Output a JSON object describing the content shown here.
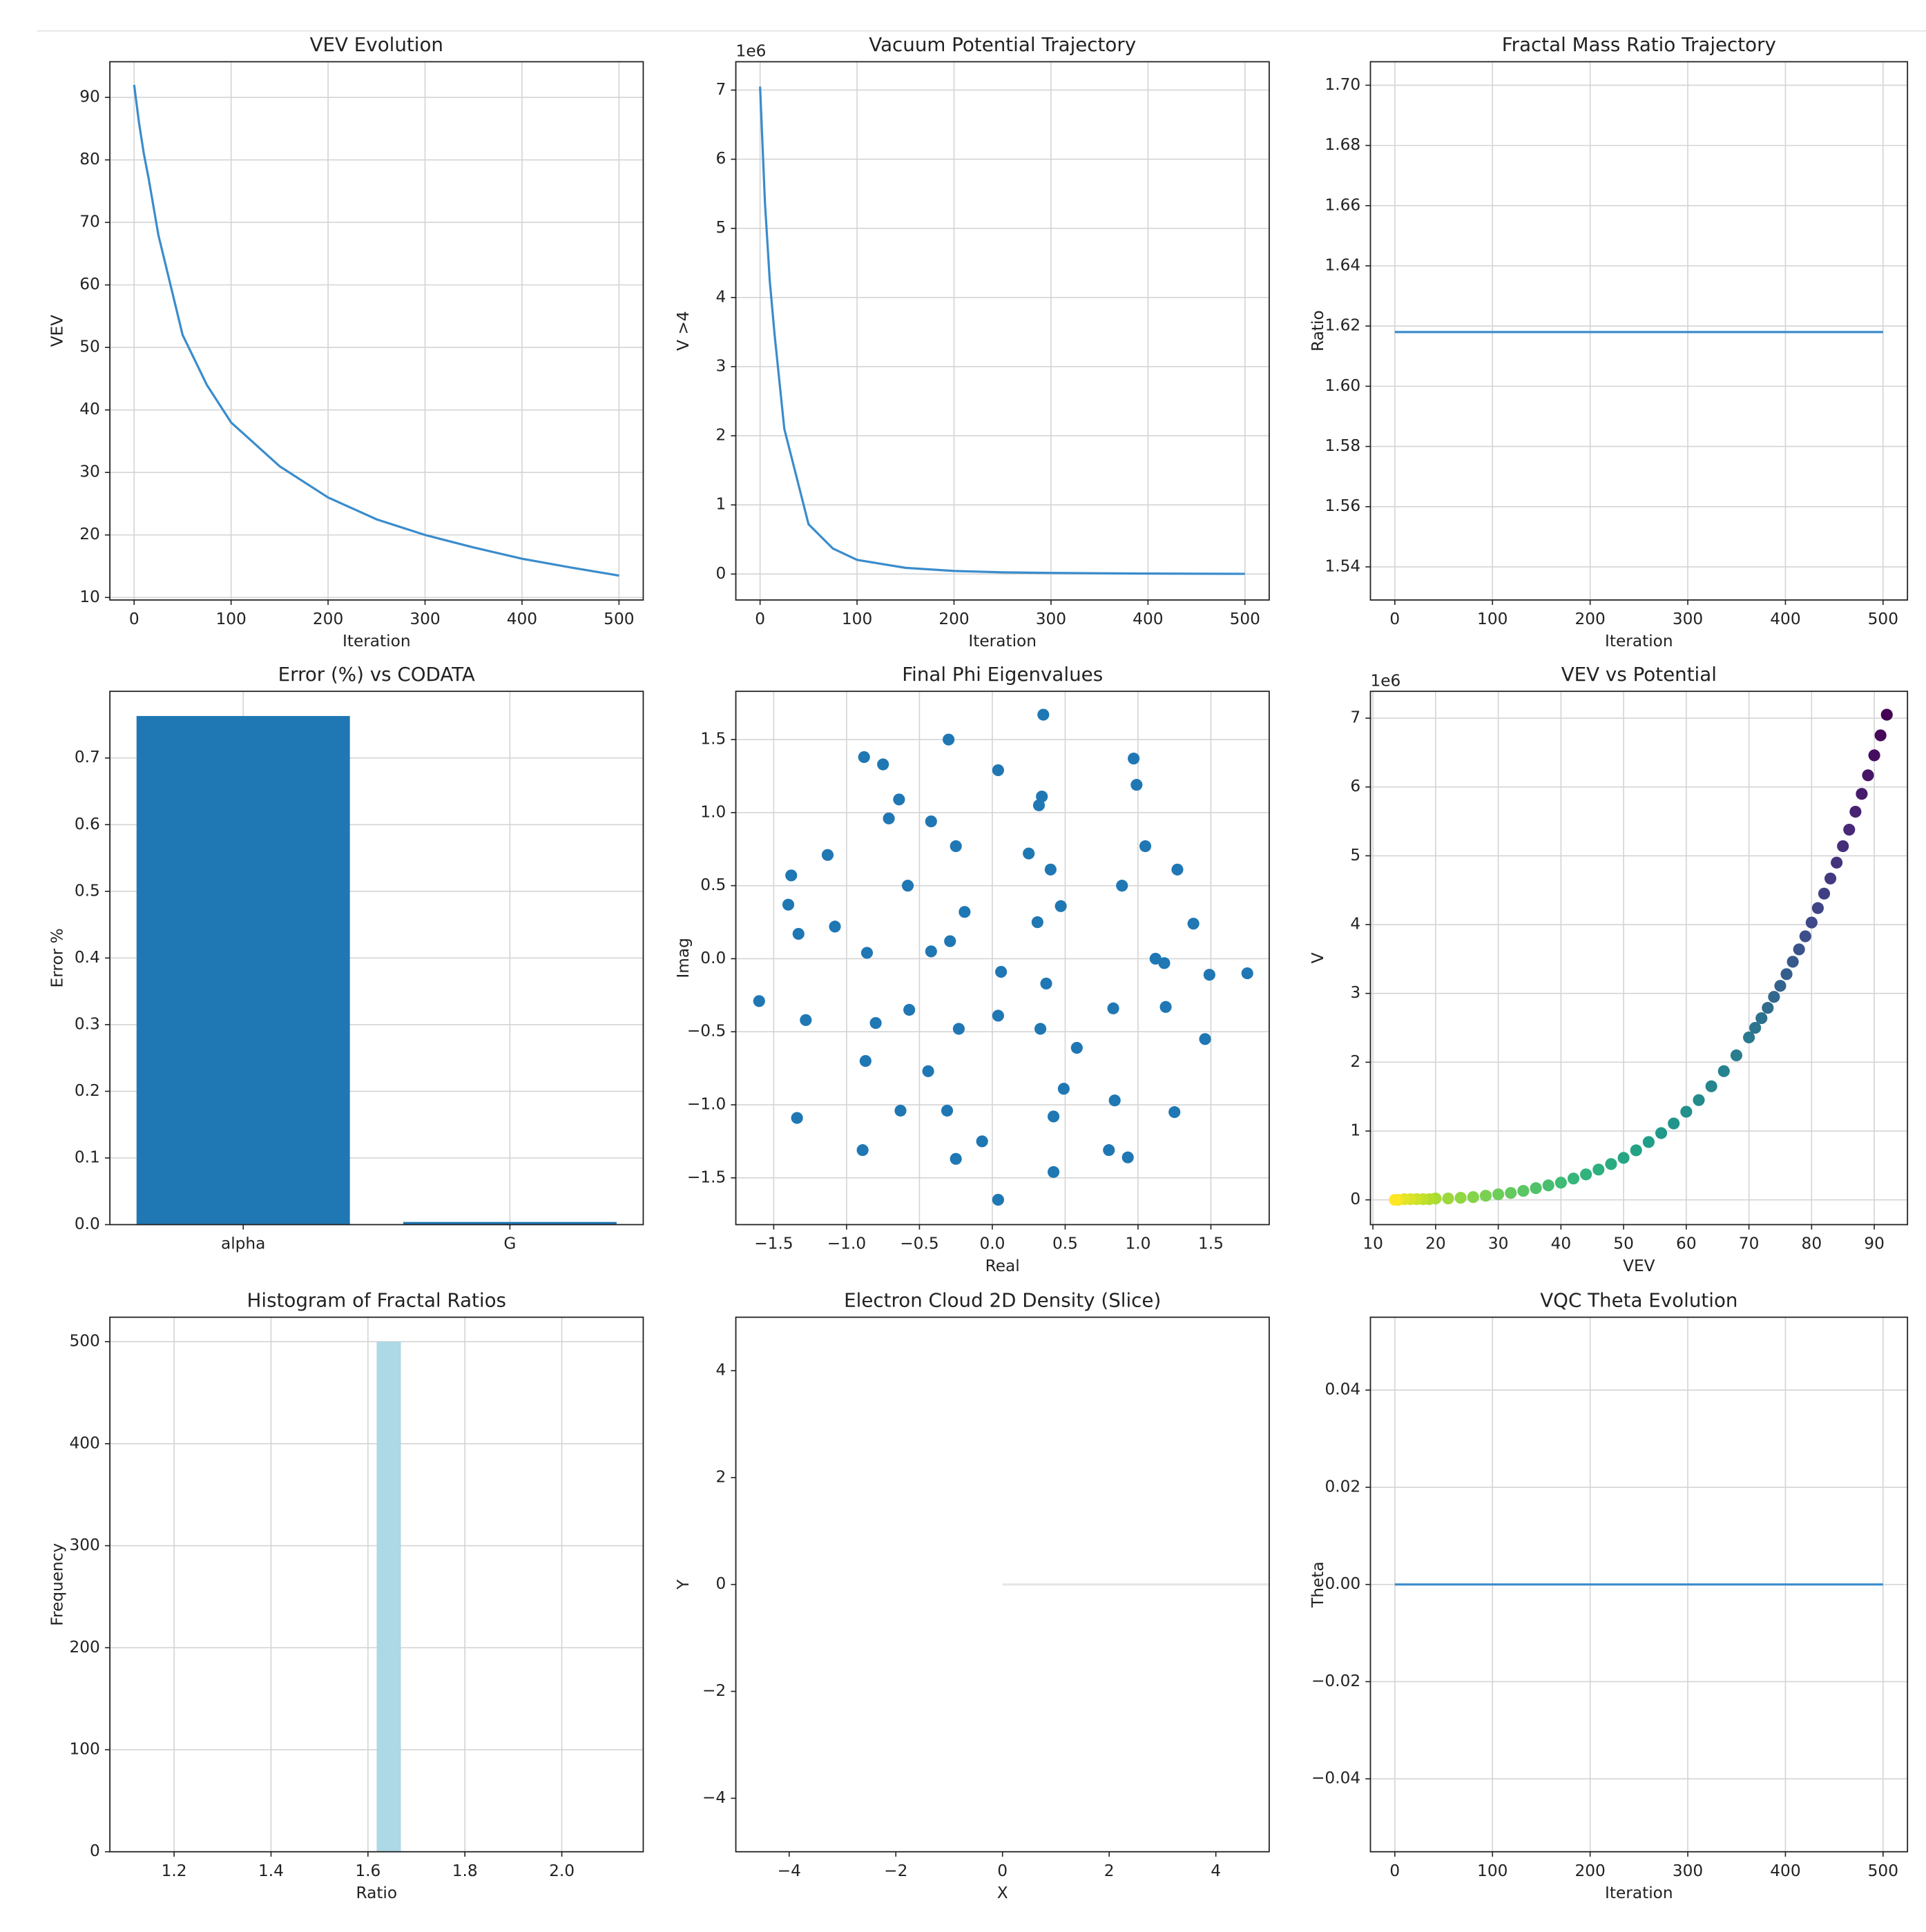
{
  "chart_data": [
    {
      "type": "line",
      "title": "VEV Evolution",
      "xlabel": "Iteration",
      "ylabel": "VEV",
      "grid": true,
      "color": "#3a8ccc",
      "x": [
        0,
        5,
        10,
        15,
        25,
        50,
        75,
        100,
        150,
        200,
        250,
        300,
        350,
        400,
        450,
        500
      ],
      "values": [
        92,
        86,
        81,
        77,
        68,
        52,
        44,
        38,
        31,
        26,
        22.5,
        20,
        18,
        16.2,
        14.8,
        13.5
      ],
      "xlim": [
        -25,
        525
      ],
      "xticks": [
        0,
        100,
        200,
        300,
        400,
        500
      ],
      "ylim": [
        9.6,
        95.7
      ],
      "yticks": [
        10,
        20,
        30,
        40,
        50,
        60,
        70,
        80,
        90
      ]
    },
    {
      "type": "line",
      "title": "Vacuum Potential Trajectory",
      "xlabel": "Iteration",
      "ylabel": "V >4",
      "y_offset_text": "1e6",
      "grid": true,
      "color": "#3a8ccc",
      "x": [
        0,
        5,
        10,
        15,
        25,
        50,
        75,
        100,
        150,
        200,
        250,
        300,
        350,
        400,
        450,
        500
      ],
      "values": [
        7.05,
        5.38,
        4.24,
        3.46,
        2.1,
        0.72,
        0.37,
        0.205,
        0.09,
        0.045,
        0.025,
        0.016,
        0.011,
        0.007,
        0.005,
        0.003
      ],
      "xlim": [
        -25,
        525
      ],
      "xticks": [
        0,
        100,
        200,
        300,
        400,
        500
      ],
      "ylim": [
        -0.375,
        7.41
      ],
      "yticks": [
        0,
        1,
        2,
        3,
        4,
        5,
        6,
        7
      ]
    },
    {
      "type": "line",
      "title": "Fractal Mass Ratio Trajectory",
      "xlabel": "Iteration",
      "ylabel": "Ratio",
      "grid": true,
      "color": "#3a8ccc",
      "x": [
        0,
        500
      ],
      "values": [
        1.618,
        1.618
      ],
      "xlim": [
        -25,
        525
      ],
      "xticks": [
        0,
        100,
        200,
        300,
        400,
        500
      ],
      "ylim": [
        1.529,
        1.7078
      ],
      "yticks": [
        {
          "value": 1.54,
          "label": "1.54"
        },
        {
          "value": 1.56,
          "label": "1.56"
        },
        {
          "value": 1.58,
          "label": "1.58"
        },
        {
          "value": 1.6,
          "label": "1.60"
        },
        {
          "value": 1.62,
          "label": "1.62"
        },
        {
          "value": 1.64,
          "label": "1.64"
        },
        {
          "value": 1.66,
          "label": "1.66"
        },
        {
          "value": 1.68,
          "label": "1.68"
        },
        {
          "value": 1.7,
          "label": "1.70"
        }
      ]
    },
    {
      "type": "bar",
      "title": "Error (%) vs CODATA",
      "ylabel": "Error %",
      "grid": true,
      "color": "#1f77b4",
      "categories": [
        "alpha",
        "G"
      ],
      "values": [
        0.763,
        0.004
      ],
      "ylim": [
        0,
        0.8
      ],
      "yticks": [
        {
          "value": 0,
          "label": "0.0"
        },
        {
          "value": 0.1,
          "label": "0.1"
        },
        {
          "value": 0.2,
          "label": "0.2"
        },
        {
          "value": 0.3,
          "label": "0.3"
        },
        {
          "value": 0.4,
          "label": "0.4"
        },
        {
          "value": 0.5,
          "label": "0.5"
        },
        {
          "value": 0.6,
          "label": "0.6"
        },
        {
          "value": 0.7,
          "label": "0.7"
        }
      ]
    },
    {
      "type": "scatter",
      "title": "Final Phi Eigenvalues",
      "xlabel": "Real",
      "ylabel": "Imag",
      "grid": true,
      "color": "#1f77b4",
      "x": [
        0.35,
        -0.3,
        -0.88,
        -0.75,
        0.97,
        0.04,
        -0.64,
        0.34,
        0.32,
        0.99,
        -0.71,
        -0.42,
        -0.25,
        1.05,
        -1.13,
        0.25,
        0.4,
        1.27,
        -1.38,
        -0.58,
        0.89,
        -1.4,
        -0.19,
        0.47,
        -1.08,
        0.31,
        1.38,
        -1.33,
        -0.29,
        -0.42,
        -0.86,
        1.12,
        1.18,
        0.06,
        1.49,
        1.75,
        0.37,
        -1.6,
        -0.57,
        1.19,
        0.83,
        0.04,
        -1.28,
        -0.8,
        -0.23,
        0.33,
        1.46,
        0.58,
        -0.87,
        -0.44,
        0.49,
        0.84,
        -0.63,
        -0.31,
        1.25,
        -1.34,
        0.42,
        -0.07,
        -0.89,
        0.8,
        0.93,
        -0.25,
        0.42,
        0.04
      ],
      "values": [
        1.67,
        1.5,
        1.38,
        1.33,
        1.37,
        1.29,
        1.09,
        1.11,
        1.05,
        1.19,
        0.96,
        0.94,
        0.77,
        0.77,
        0.71,
        0.72,
        0.61,
        0.61,
        0.57,
        0.5,
        0.5,
        0.37,
        0.32,
        0.36,
        0.22,
        0.25,
        0.24,
        0.17,
        0.12,
        0.05,
        0.04,
        0.0,
        -0.03,
        -0.09,
        -0.11,
        -0.1,
        -0.17,
        -0.29,
        -0.35,
        -0.33,
        -0.34,
        -0.39,
        -0.42,
        -0.44,
        -0.48,
        -0.48,
        -0.55,
        -0.61,
        -0.7,
        -0.77,
        -0.89,
        -0.97,
        -1.04,
        -1.04,
        -1.05,
        -1.09,
        -1.08,
        -1.25,
        -1.31,
        -1.31,
        -1.36,
        -1.37,
        -1.46,
        -1.65
      ],
      "xlim": [
        -1.76,
        1.9
      ],
      "xticks": [
        {
          "value": -1.5,
          "label": "−1.5"
        },
        {
          "value": -1,
          "label": "−1.0"
        },
        {
          "value": -0.5,
          "label": "−0.5"
        },
        {
          "value": 0,
          "label": "0.0"
        },
        {
          "value": 0.5,
          "label": "0.5"
        },
        {
          "value": 1,
          "label": "1.0"
        },
        {
          "value": 1.5,
          "label": "1.5"
        }
      ],
      "ylim": [
        -1.82,
        1.83
      ],
      "yticks": [
        {
          "value": -1.5,
          "label": "−1.5"
        },
        {
          "value": -1,
          "label": "−1.0"
        },
        {
          "value": -0.5,
          "label": "−0.5"
        },
        {
          "value": 0,
          "label": "0.0"
        },
        {
          "value": 0.5,
          "label": "0.5"
        },
        {
          "value": 1,
          "label": "1.0"
        },
        {
          "value": 1.5,
          "label": "1.5"
        }
      ]
    },
    {
      "type": "scatter",
      "title": "VEV vs Potential",
      "xlabel": "VEV",
      "ylabel": "V",
      "y_offset_text": "1e6",
      "grid": true,
      "colormap": "viridis",
      "x": [
        92,
        91,
        90,
        89,
        88,
        87,
        86,
        85,
        84,
        83,
        82,
        81,
        80,
        79,
        78,
        77,
        76,
        75,
        74,
        73,
        72,
        71,
        70,
        68,
        66,
        64,
        62,
        60,
        58,
        56,
        54,
        52,
        50,
        48,
        46,
        44,
        42,
        40,
        38,
        36,
        34,
        32,
        30,
        28,
        26,
        24,
        22,
        20,
        19,
        18,
        17,
        16,
        15,
        14,
        13.5
      ],
      "values": [
        7.05,
        6.75,
        6.46,
        6.17,
        5.9,
        5.64,
        5.38,
        5.14,
        4.9,
        4.67,
        4.45,
        4.24,
        4.03,
        3.83,
        3.64,
        3.46,
        3.28,
        3.11,
        2.95,
        2.79,
        2.64,
        2.5,
        2.36,
        2.1,
        1.87,
        1.65,
        1.45,
        1.28,
        1.11,
        0.97,
        0.84,
        0.72,
        0.61,
        0.52,
        0.44,
        0.37,
        0.31,
        0.25,
        0.21,
        0.17,
        0.13,
        0.1,
        0.08,
        0.06,
        0.04,
        0.03,
        0.02,
        0.02,
        0.01,
        0.01,
        0.01,
        0.01,
        0.01,
        0,
        0
      ],
      "xlim": [
        9.6,
        95.3
      ],
      "xticks": [
        10,
        20,
        30,
        40,
        50,
        60,
        70,
        80,
        90
      ],
      "ylim": [
        -0.36,
        7.39
      ],
      "yticks": [
        0,
        1,
        2,
        3,
        4,
        5,
        6,
        7
      ]
    },
    {
      "type": "histogram",
      "title": "Histogram of Fractal Ratios",
      "xlabel": "Ratio",
      "ylabel": "Frequency",
      "grid": true,
      "color": "#add8e6",
      "bins": [
        1.118,
        1.168,
        1.218,
        1.268,
        1.318,
        1.368,
        1.418,
        1.468,
        1.518,
        1.568,
        1.618,
        1.668,
        1.718,
        1.768,
        1.818,
        1.868,
        1.918,
        1.968,
        2.018,
        2.068,
        2.118
      ],
      "values": [
        0,
        0,
        0,
        0,
        0,
        0,
        0,
        0,
        0,
        0,
        500,
        0,
        0,
        0,
        0,
        0,
        0,
        0,
        0,
        0
      ],
      "xlim": [
        1.0675,
        2.168
      ],
      "xticks": [
        {
          "value": 1.2,
          "label": "1.2"
        },
        {
          "value": 1.4,
          "label": "1.4"
        },
        {
          "value": 1.6,
          "label": "1.6"
        },
        {
          "value": 1.8,
          "label": "1.8"
        },
        {
          "value": 2,
          "label": "2.0"
        }
      ],
      "ylim": [
        0,
        524
      ],
      "yticks": [
        0,
        100,
        200,
        300,
        400,
        500
      ]
    },
    {
      "type": "line",
      "title": "Electron Cloud 2D Density (Slice)",
      "xlabel": "X",
      "ylabel": "Y",
      "grid": false,
      "color": "#e6e6e6",
      "x": [
        0,
        5
      ],
      "values": [
        0,
        0
      ],
      "xlim": [
        -5,
        5
      ],
      "xticks": [
        {
          "value": -4,
          "label": "−4"
        },
        {
          "value": -2,
          "label": "−2"
        },
        0,
        2,
        4
      ],
      "ylim": [
        -5,
        5
      ],
      "yticks": [
        {
          "value": -4,
          "label": "−4"
        },
        {
          "value": -2,
          "label": "−2"
        },
        0,
        2,
        4
      ]
    },
    {
      "type": "line",
      "title": "VQC Theta Evolution",
      "xlabel": "Iteration",
      "ylabel": "Theta",
      "grid": true,
      "color": "#3a8ccc",
      "x": [
        0,
        500
      ],
      "values": [
        0,
        0
      ],
      "xlim": [
        -25,
        525
      ],
      "xticks": [
        0,
        100,
        200,
        300,
        400,
        500
      ],
      "ylim": [
        -0.055,
        0.055
      ],
      "yticks": [
        {
          "value": -0.04,
          "label": "−0.04"
        },
        {
          "value": -0.02,
          "label": "−0.02"
        },
        {
          "value": 0,
          "label": "0.00"
        },
        {
          "value": 0.02,
          "label": "0.02"
        },
        {
          "value": 0.04,
          "label": "0.04"
        }
      ]
    }
  ]
}
